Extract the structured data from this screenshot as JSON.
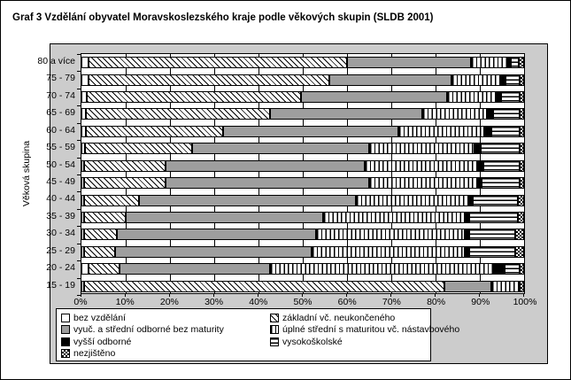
{
  "page": {
    "title": "Graf 3 Vzdělání obyvatel Moravskoslezského kraje podle věkových skupin (SLDB 2001)"
  },
  "chart_data": {
    "type": "bar",
    "variant": "horizontal-stacked-100-percent",
    "title": "Graf 3 Vzdělání obyvatel Moravskoslezského kraje podle věkových skupin (SLDB 2001)",
    "xlabel": "",
    "ylabel": "Věková skupina",
    "xlim": [
      0,
      100
    ],
    "x_tick_labels": [
      "0%",
      "10%",
      "20%",
      "30%",
      "40%",
      "50%",
      "60%",
      "70%",
      "80%",
      "90%",
      "100%"
    ],
    "grid": true,
    "legend_position": "bottom",
    "categories": [
      "80 a více",
      "75 - 79",
      "70 - 74",
      "65 - 69",
      "60 - 64",
      "55 - 59",
      "50 - 54",
      "45 - 49",
      "40 - 44",
      "35 - 39",
      "30 - 34",
      "25 - 29",
      "20 - 24",
      "15 - 19"
    ],
    "series": [
      {
        "name": "bez vzdělání",
        "pattern": "solid-white",
        "values": [
          1.5,
          1.5,
          1.2,
          1.0,
          1.0,
          0.7,
          0.6,
          0.6,
          0.5,
          0.5,
          0.5,
          0.6,
          1.5,
          0.5
        ]
      },
      {
        "name": "základní vč. neukončeného",
        "pattern": "diagonal-hatch",
        "values": [
          58.5,
          54.5,
          48.3,
          41.5,
          31.0,
          24.3,
          18.4,
          18.4,
          12.5,
          9.5,
          7.5,
          6.9,
          7.0,
          81.5
        ]
      },
      {
        "name": "vyuč. a střední odborné bez maturity",
        "pattern": "solid-gray",
        "values": [
          28.0,
          27.5,
          33.0,
          34.5,
          39.5,
          40.0,
          45.0,
          46.0,
          49.0,
          44.5,
          45.0,
          44.5,
          34.0,
          10.5
        ]
      },
      {
        "name": "úplné střední s maturitou vč. nástavbového",
        "pattern": "vertical-stripes",
        "values": [
          8.3,
          11.0,
          11.0,
          14.5,
          19.5,
          23.7,
          25.5,
          24.4,
          25.5,
          32.0,
          33.5,
          34.5,
          50.5,
          6.5
        ]
      },
      {
        "name": "vyšší odborné",
        "pattern": "solid-black",
        "values": [
          0.7,
          1.2,
          1.3,
          1.5,
          1.5,
          1.5,
          1.2,
          1.0,
          0.9,
          1.0,
          1.0,
          1.0,
          2.5,
          0.0
        ]
      },
      {
        "name": "vysokoškolské",
        "pattern": "horizontal-stripes",
        "values": [
          1.8,
          3.2,
          4.2,
          6.0,
          6.5,
          8.8,
          8.3,
          8.6,
          10.1,
          11.0,
          10.5,
          10.5,
          3.5,
          0.0
        ]
      },
      {
        "name": "nezjištěno",
        "pattern": "checker",
        "values": [
          1.2,
          1.1,
          1.0,
          1.0,
          1.0,
          1.0,
          1.0,
          1.0,
          1.5,
          1.5,
          2.0,
          2.0,
          1.0,
          1.0
        ]
      }
    ],
    "colors": {
      "segment_gray": "#9e9e9e",
      "segment_black": "#000000",
      "pattern_ink": "#000000",
      "plot_background": "#ffffff",
      "chart_background": "#cccccc"
    }
  }
}
